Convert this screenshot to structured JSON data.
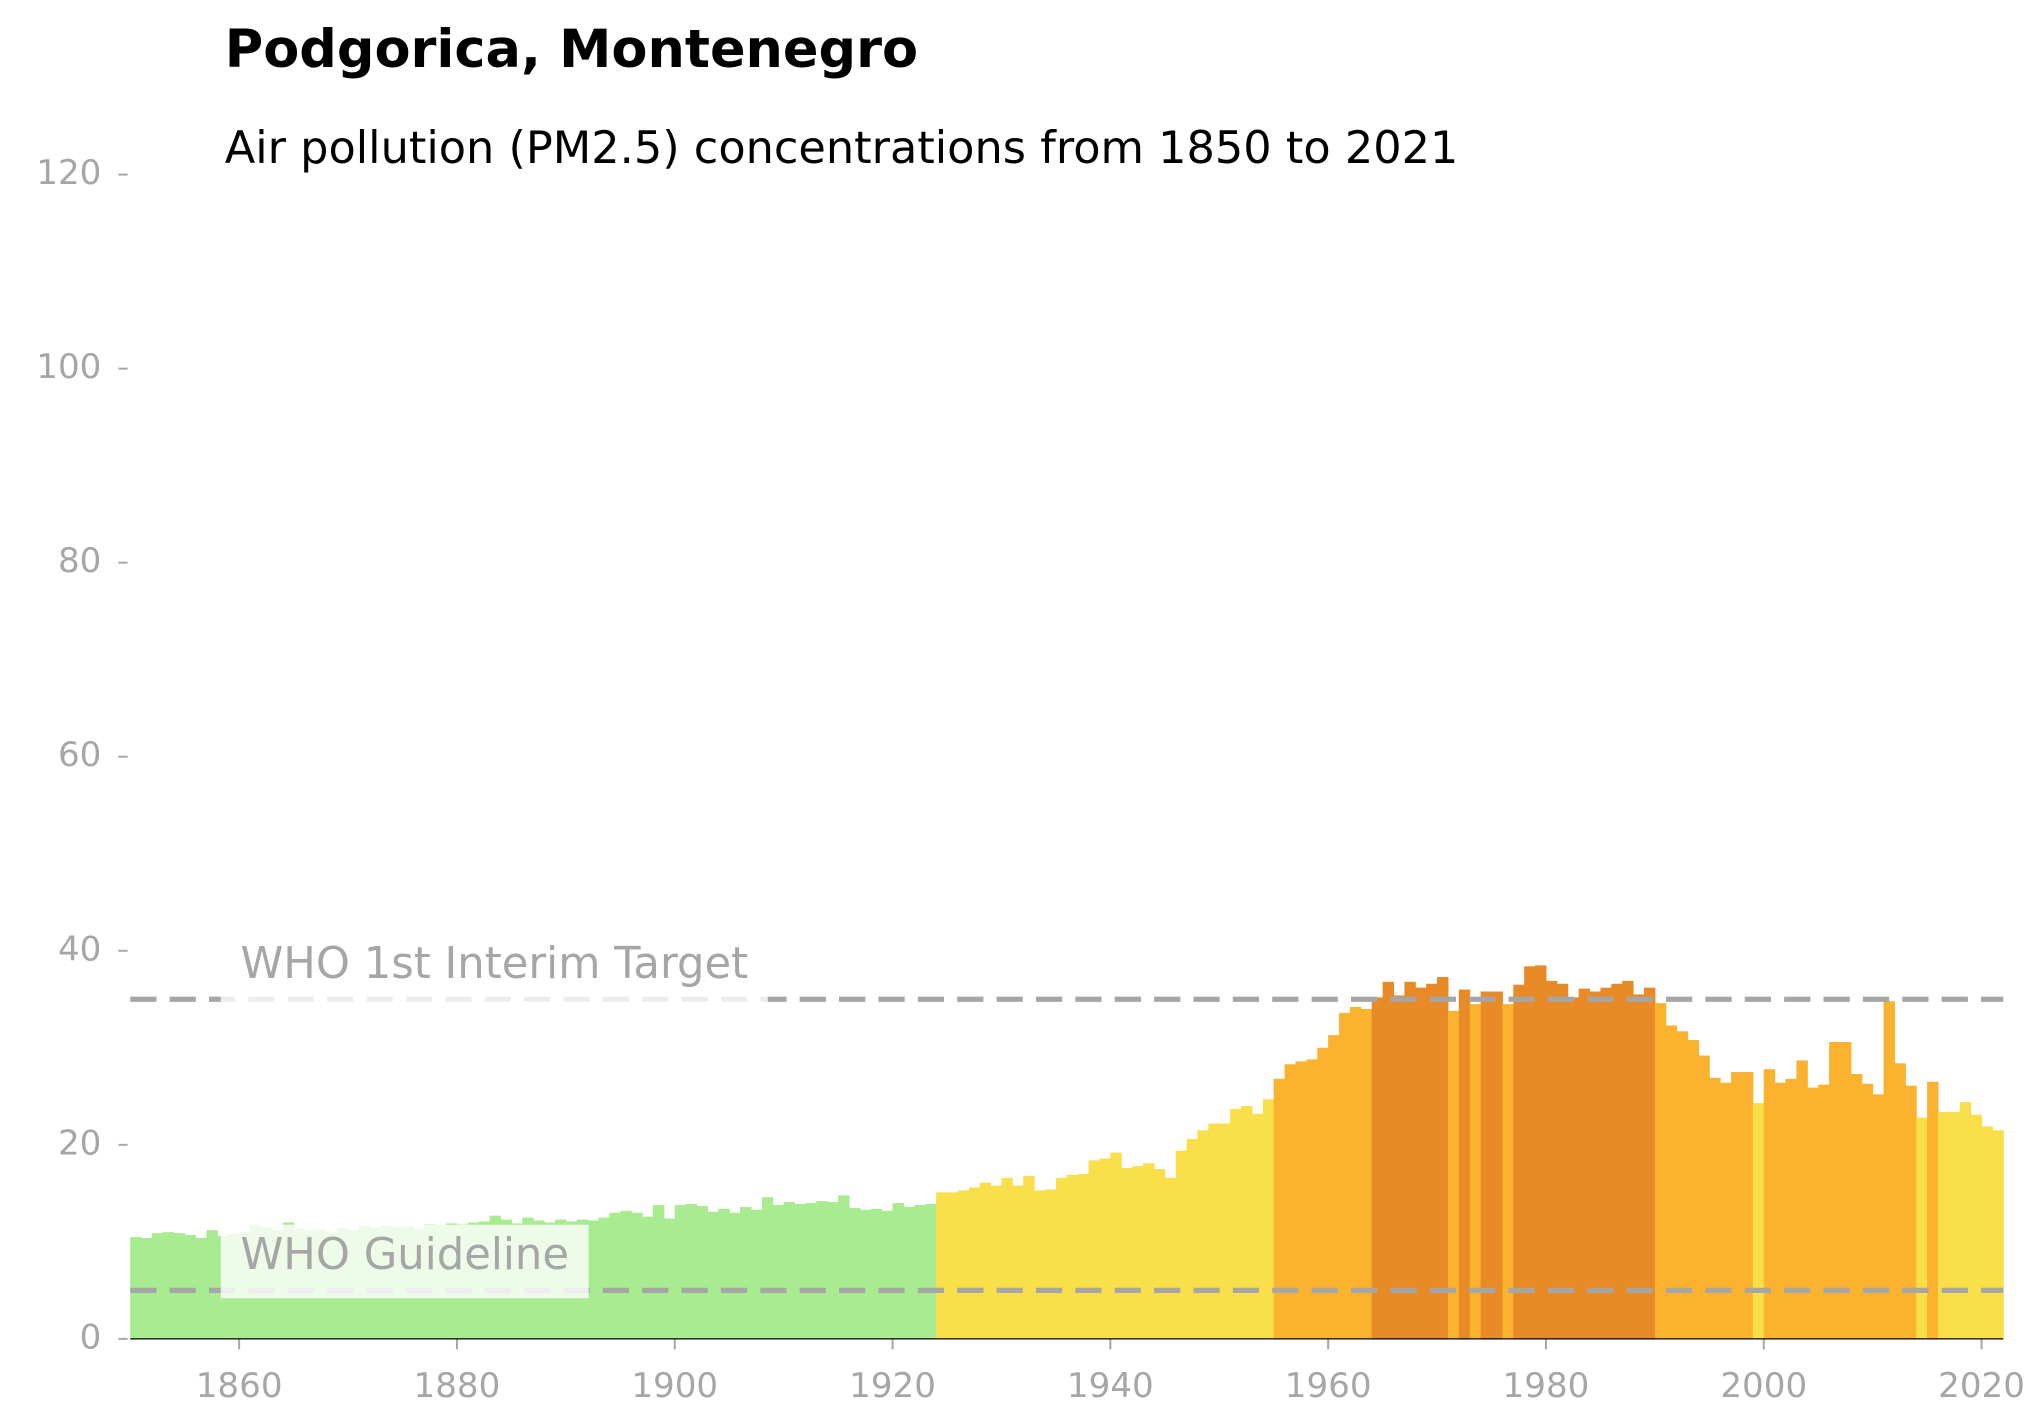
{
  "chart_data": {
    "type": "bar",
    "title": "Podgorica, Montenegro",
    "subtitle": "Air pollution (PM2.5) concentrations from 1850 to 2021",
    "x": [
      1850,
      1851,
      1852,
      1853,
      1854,
      1855,
      1856,
      1857,
      1858,
      1859,
      1860,
      1861,
      1862,
      1863,
      1864,
      1865,
      1866,
      1867,
      1868,
      1869,
      1870,
      1871,
      1872,
      1873,
      1874,
      1875,
      1876,
      1877,
      1878,
      1879,
      1880,
      1881,
      1882,
      1883,
      1884,
      1885,
      1886,
      1887,
      1888,
      1889,
      1890,
      1891,
      1892,
      1893,
      1894,
      1895,
      1896,
      1897,
      1898,
      1899,
      1900,
      1901,
      1902,
      1903,
      1904,
      1905,
      1906,
      1907,
      1908,
      1909,
      1910,
      1911,
      1912,
      1913,
      1914,
      1915,
      1916,
      1917,
      1918,
      1919,
      1920,
      1921,
      1922,
      1923,
      1924,
      1925,
      1926,
      1927,
      1928,
      1929,
      1930,
      1931,
      1932,
      1933,
      1934,
      1935,
      1936,
      1937,
      1938,
      1939,
      1940,
      1941,
      1942,
      1943,
      1944,
      1945,
      1946,
      1947,
      1948,
      1949,
      1950,
      1951,
      1952,
      1953,
      1954,
      1955,
      1956,
      1957,
      1958,
      1959,
      1960,
      1961,
      1962,
      1963,
      1964,
      1965,
      1966,
      1967,
      1968,
      1969,
      1970,
      1971,
      1972,
      1973,
      1974,
      1975,
      1976,
      1977,
      1978,
      1979,
      1980,
      1981,
      1982,
      1983,
      1984,
      1985,
      1986,
      1987,
      1988,
      1989,
      1990,
      1991,
      1992,
      1993,
      1994,
      1995,
      1996,
      1997,
      1998,
      1999,
      2000,
      2001,
      2002,
      2003,
      2004,
      2005,
      2006,
      2007,
      2008,
      2009,
      2010,
      2011,
      2012,
      2013,
      2014,
      2015,
      2016,
      2017,
      2018,
      2019,
      2020,
      2021
    ],
    "values": [
      10.5,
      10.4,
      10.9,
      11.0,
      10.9,
      10.7,
      10.4,
      11.2,
      10.6,
      10.8,
      11.0,
      11.7,
      11.5,
      11.2,
      12.0,
      11.4,
      11.2,
      11.3,
      11.0,
      11.4,
      11.2,
      11.7,
      11.5,
      11.7,
      11.5,
      11.6,
      11.3,
      11.8,
      11.7,
      11.9,
      11.8,
      12.0,
      12.1,
      12.7,
      12.3,
      11.9,
      12.5,
      12.2,
      12.0,
      12.3,
      12.1,
      12.3,
      12.2,
      12.5,
      13.0,
      13.2,
      13.0,
      12.6,
      13.8,
      12.4,
      13.8,
      13.9,
      13.7,
      13.1,
      13.4,
      13.0,
      13.6,
      13.3,
      14.6,
      13.8,
      14.1,
      13.9,
      14.0,
      14.2,
      14.1,
      14.8,
      13.5,
      13.3,
      13.4,
      13.2,
      14.0,
      13.6,
      13.8,
      13.9,
      15.1,
      15.1,
      15.3,
      15.6,
      16.1,
      15.8,
      16.6,
      15.8,
      16.8,
      15.3,
      15.4,
      16.6,
      16.9,
      17.0,
      18.4,
      18.6,
      19.2,
      17.6,
      17.8,
      18.1,
      17.5,
      16.6,
      19.4,
      20.6,
      21.5,
      22.2,
      22.2,
      23.7,
      24.0,
      23.2,
      24.7,
      26.8,
      28.3,
      28.6,
      28.8,
      30.0,
      31.3,
      33.6,
      34.2,
      34.0,
      35.2,
      36.8,
      35.4,
      36.8,
      36.2,
      36.6,
      37.3,
      33.8,
      36.0,
      34.5,
      35.8,
      35.8,
      34.5,
      36.5,
      38.4,
      38.5,
      36.9,
      36.6,
      35.2,
      36.1,
      35.8,
      36.2,
      36.6,
      36.9,
      35.5,
      36.2,
      34.6,
      32.3,
      31.7,
      30.8,
      29.2,
      26.9,
      26.4,
      27.5,
      27.5,
      24.3,
      27.8,
      26.4,
      26.8,
      28.7,
      25.9,
      26.2,
      30.6,
      30.6,
      27.3,
      26.3,
      25.2,
      34.8,
      28.4,
      26.1,
      22.8,
      26.5,
      23.4,
      23.4,
      24.4,
      23.1,
      21.9,
      21.5
    ],
    "colors": [
      "#a8eb91",
      "#a8eb91",
      "#a8eb91",
      "#a8eb91",
      "#a8eb91",
      "#a8eb91",
      "#a8eb91",
      "#a8eb91",
      "#a8eb91",
      "#a8eb91",
      "#a8eb91",
      "#a8eb91",
      "#a8eb91",
      "#a8eb91",
      "#a8eb91",
      "#a8eb91",
      "#a8eb91",
      "#a8eb91",
      "#a8eb91",
      "#a8eb91",
      "#a8eb91",
      "#a8eb91",
      "#a8eb91",
      "#a8eb91",
      "#a8eb91",
      "#a8eb91",
      "#a8eb91",
      "#a8eb91",
      "#a8eb91",
      "#a8eb91",
      "#a8eb91",
      "#a8eb91",
      "#a8eb91",
      "#a8eb91",
      "#a8eb91",
      "#a8eb91",
      "#a8eb91",
      "#a8eb91",
      "#a8eb91",
      "#a8eb91",
      "#a8eb91",
      "#a8eb91",
      "#a8eb91",
      "#a8eb91",
      "#a8eb91",
      "#a8eb91",
      "#a8eb91",
      "#a8eb91",
      "#a8eb91",
      "#a8eb91",
      "#a8eb91",
      "#a8eb91",
      "#a8eb91",
      "#a8eb91",
      "#a8eb91",
      "#a8eb91",
      "#a8eb91",
      "#a8eb91",
      "#a8eb91",
      "#a8eb91",
      "#a8eb91",
      "#a8eb91",
      "#a8eb91",
      "#a8eb91",
      "#a8eb91",
      "#a8eb91",
      "#a8eb91",
      "#a8eb91",
      "#a8eb91",
      "#a8eb91",
      "#a8eb91",
      "#a8eb91",
      "#a8eb91",
      "#a8eb91",
      "#f9df4a",
      "#f9df4a",
      "#f9df4a",
      "#f9df4a",
      "#f9df4a",
      "#f9df4a",
      "#f9df4a",
      "#f9df4a",
      "#f9df4a",
      "#f9df4a",
      "#f9df4a",
      "#f9df4a",
      "#f9df4a",
      "#f9df4a",
      "#f9df4a",
      "#f9df4a",
      "#f9df4a",
      "#f9df4a",
      "#f9df4a",
      "#f9df4a",
      "#f9df4a",
      "#f9df4a",
      "#f9df4a",
      "#f9df4a",
      "#f9df4a",
      "#f9df4a",
      "#f9df4a",
      "#f9df4a",
      "#f9df4a",
      "#f9df4a",
      "#f9df4a",
      "#fbb22e",
      "#fbb22e",
      "#fbb22e",
      "#fbb22e",
      "#fbb22e",
      "#fbb22e",
      "#fbb22e",
      "#fbb22e",
      "#fbb22e",
      "#e88a25",
      "#e88a25",
      "#e88a25",
      "#e88a25",
      "#e88a25",
      "#e88a25",
      "#e88a25",
      "#fbb22e",
      "#e88a25",
      "#fbb22e",
      "#e88a25",
      "#e88a25",
      "#fbb22e",
      "#e88a25",
      "#e88a25",
      "#e88a25",
      "#e88a25",
      "#e88a25",
      "#e88a25",
      "#e88a25",
      "#e88a25",
      "#e88a25",
      "#e88a25",
      "#e88a25",
      "#e88a25",
      "#e88a25",
      "#fbb22e",
      "#fbb22e",
      "#fbb22e",
      "#fbb22e",
      "#fbb22e",
      "#fbb22e",
      "#fbb22e",
      "#fbb22e",
      "#fbb22e",
      "#f9df4a",
      "#fbb22e",
      "#fbb22e",
      "#fbb22e",
      "#fbb22e",
      "#fbb22e",
      "#fbb22e",
      "#fbb22e",
      "#fbb22e",
      "#fbb22e",
      "#fbb22e",
      "#fbb22e",
      "#fbb22e",
      "#fbb22e",
      "#fbb22e",
      "#f9df4a",
      "#fbb22e",
      "#f9df4a",
      "#f9df4a",
      "#f9df4a",
      "#f9df4a",
      "#f9df4a",
      "#f9df4a"
    ],
    "xlim": [
      1850,
      2022
    ],
    "xticks": [
      1860,
      1880,
      1900,
      1920,
      1940,
      1960,
      1980,
      2000,
      2020
    ],
    "ylim": [
      0,
      120
    ],
    "yticks": [
      0,
      20,
      40,
      60,
      80,
      100,
      120
    ],
    "reference_lines": [
      {
        "label": "WHO 1st Interim Target",
        "value": 35
      },
      {
        "label": "WHO Guideline",
        "value": 5
      }
    ]
  }
}
